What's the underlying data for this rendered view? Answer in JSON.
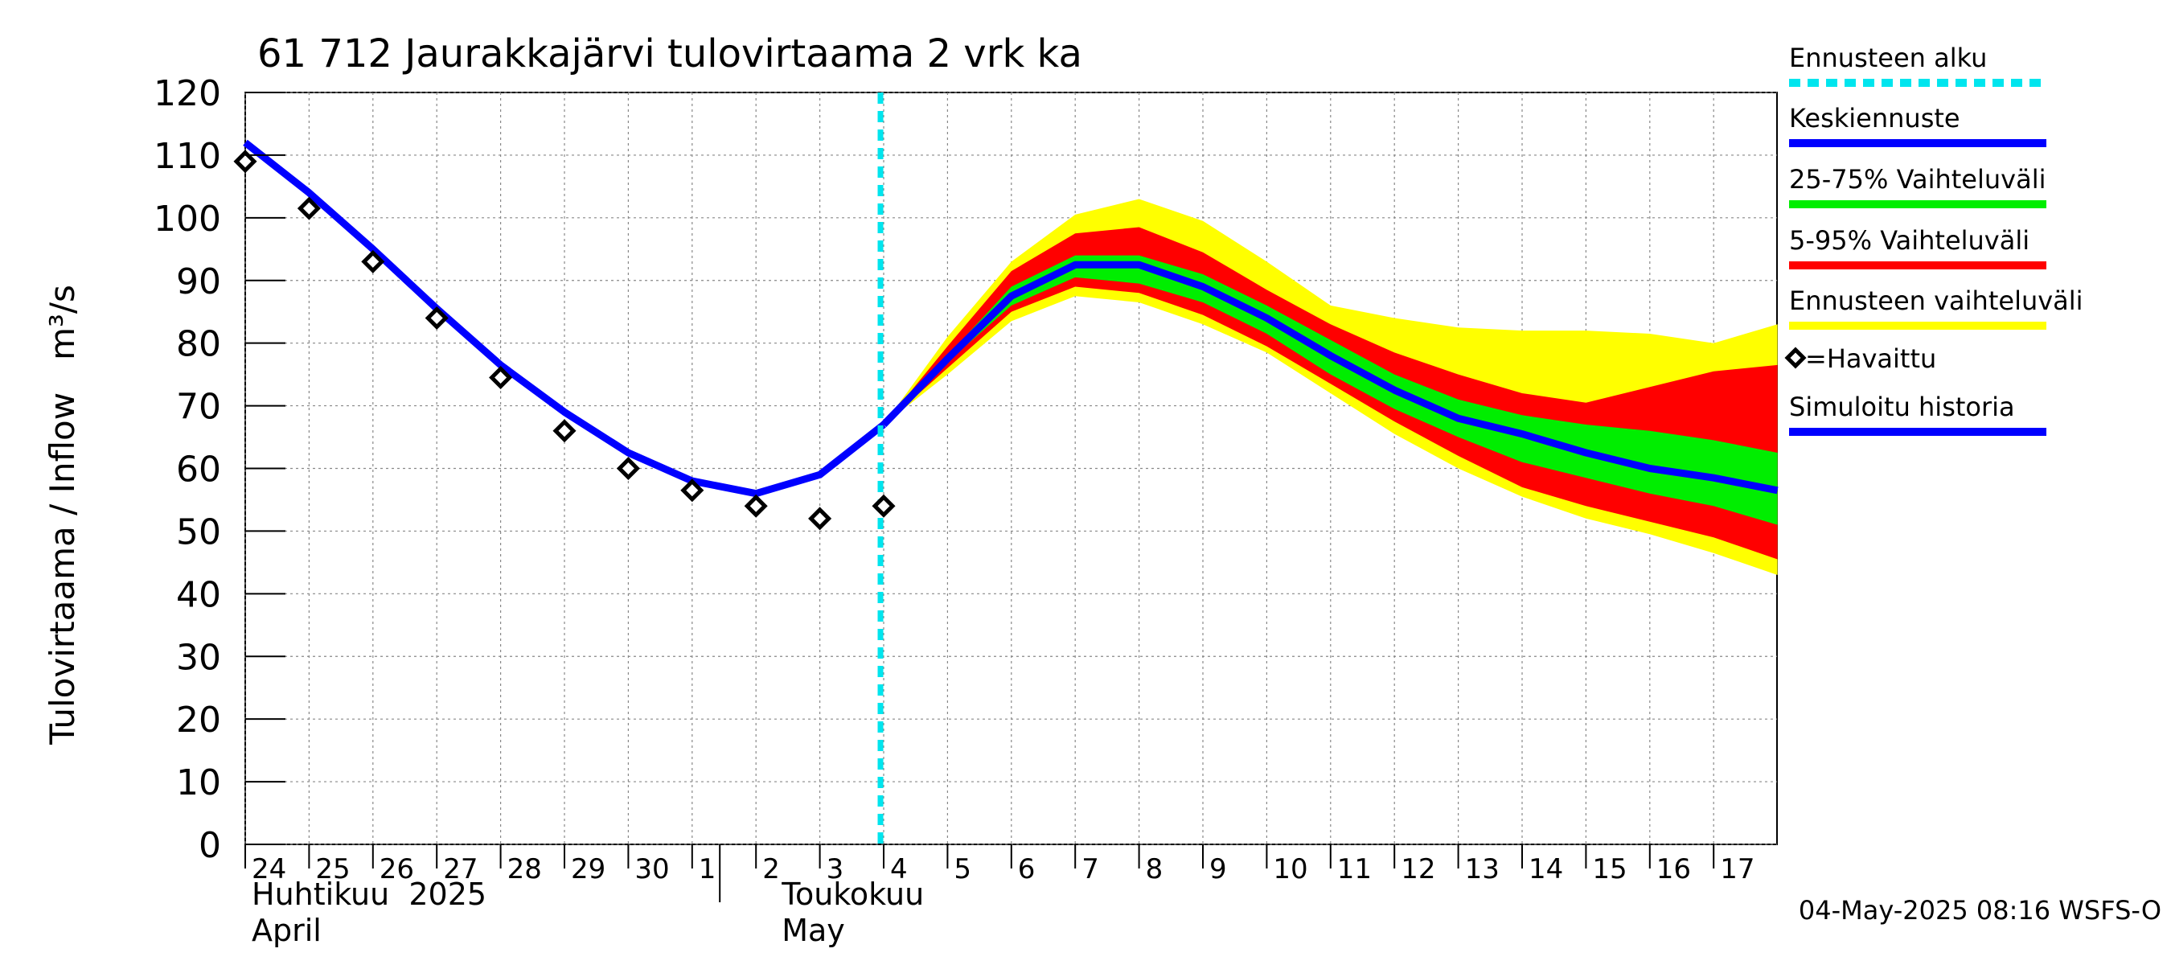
{
  "chart_data": {
    "type": "line",
    "title": "61 712 Jaurakkajärvi tulovirtaama 2 vrk ka",
    "ylabel": "Tulovirtaama / Inflow   m³/s",
    "ylim": [
      0,
      120
    ],
    "yticks": [
      0,
      10,
      20,
      30,
      40,
      50,
      60,
      70,
      80,
      90,
      100,
      110,
      120
    ],
    "x_start": "2025-04-24",
    "x_end": "2025-05-18",
    "day_ticks": [
      "24",
      "25",
      "26",
      "27",
      "28",
      "29",
      "30",
      "1",
      "2",
      "3",
      "4",
      "5",
      "6",
      "7",
      "8",
      "9",
      "10",
      "11",
      "12",
      "13",
      "14",
      "15",
      "16",
      "17"
    ],
    "month_labels": [
      {
        "line1": "Huhtikuu  2025",
        "line2": "April",
        "date": "2025-04-24"
      },
      {
        "line1": "Toukokuu",
        "line2": "May",
        "date": "2025-05-02"
      }
    ],
    "forecast_start": "2025-05-04",
    "footer": "04-May-2025 08:16 WSFS-O",
    "x": [
      "2025-04-24",
      "2025-04-25",
      "2025-04-26",
      "2025-04-27",
      "2025-04-28",
      "2025-04-29",
      "2025-04-30",
      "2025-05-01",
      "2025-05-02",
      "2025-05-03",
      "2025-05-04",
      "2025-05-05",
      "2025-05-06",
      "2025-05-07",
      "2025-05-08",
      "2025-05-09",
      "2025-05-10",
      "2025-05-11",
      "2025-05-12",
      "2025-05-13",
      "2025-05-14",
      "2025-05-15",
      "2025-05-16",
      "2025-05-17",
      "2025-05-18"
    ],
    "series": [
      {
        "name": "Simuloitu historia",
        "color": "#0000ff",
        "x": [
          "2025-04-24",
          "2025-04-25",
          "2025-04-26",
          "2025-04-27",
          "2025-04-28",
          "2025-04-29",
          "2025-04-30",
          "2025-05-01",
          "2025-05-02",
          "2025-05-03",
          "2025-05-04"
        ],
        "values": [
          112,
          104,
          95,
          85.5,
          76.5,
          69,
          62.5,
          58,
          56,
          59,
          67
        ]
      },
      {
        "name": "Keskiennuste",
        "color": "#0000ff",
        "x": [
          "2025-05-04",
          "2025-05-05",
          "2025-05-06",
          "2025-05-07",
          "2025-05-08",
          "2025-05-09",
          "2025-05-10",
          "2025-05-11",
          "2025-05-12",
          "2025-05-13",
          "2025-05-14",
          "2025-05-15",
          "2025-05-16",
          "2025-05-17",
          "2025-05-18"
        ],
        "values": [
          67,
          77.5,
          87.5,
          92.5,
          92.5,
          89,
          84,
          78,
          72.5,
          68,
          65.5,
          62.5,
          60,
          58.5,
          56.5
        ]
      },
      {
        "name": "=Havaittu",
        "color": "#000000",
        "kind": "observed",
        "x": [
          "2025-04-24",
          "2025-04-25",
          "2025-04-26",
          "2025-04-27",
          "2025-04-28",
          "2025-04-29",
          "2025-04-30",
          "2025-05-01",
          "2025-05-02",
          "2025-05-03",
          "2025-05-04"
        ],
        "values": [
          109,
          101.5,
          93,
          84,
          74.5,
          66,
          60,
          56.5,
          54,
          52,
          54
        ]
      }
    ],
    "bands": [
      {
        "name": "Ennusteen vaihteluväli",
        "color": "#ffff00",
        "upper": [
          67,
          81,
          93,
          100.5,
          103,
          99.5,
          93,
          86,
          84,
          82.5,
          82,
          82,
          81.5,
          80,
          83
        ],
        "lower": [
          67,
          75,
          83.5,
          87.5,
          86.5,
          83,
          78.5,
          72,
          65.5,
          60,
          55.5,
          52,
          49.5,
          46.5,
          43
        ]
      },
      {
        "name": "5-95% Vaihteluväli",
        "color": "#ff0000",
        "upper": [
          67,
          79.5,
          91.5,
          97.5,
          98.5,
          94.5,
          88.5,
          83,
          78.5,
          75,
          72,
          70.5,
          73,
          75.5,
          76.5
        ]
      },
      {
        "name": "25-75% Vaihteluväli",
        "color": "#00ee00",
        "upper": [
          67,
          78,
          89,
          94,
          94,
          91,
          86,
          80.5,
          75,
          71,
          68.5,
          67,
          66,
          64.5,
          62.5
        ],
        "lower": [
          67,
          77,
          86,
          90.5,
          89.5,
          86.5,
          81.5,
          75,
          69.5,
          65,
          61,
          58.5,
          56,
          54,
          51
        ]
      }
    ],
    "band_lower_5": [
      67,
      76,
      85,
      89,
      88,
      84.5,
      79.5,
      73.5,
      67.5,
      62,
      57,
      54,
      51.5,
      49,
      45.5
    ],
    "legend": [
      {
        "label": "Ennusteen alku",
        "color": "#00e5ee",
        "style": "dashed"
      },
      {
        "label": "Keskiennuste",
        "color": "#0000ff",
        "style": "line"
      },
      {
        "label": "25-75% Vaihteluväli",
        "color": "#00ee00",
        "style": "line"
      },
      {
        "label": "5-95% Vaihteluväli",
        "color": "#ff0000",
        "style": "line"
      },
      {
        "label": "Ennusteen vaihteluväli",
        "color": "#ffff00",
        "style": "line"
      },
      {
        "label": "=Havaittu",
        "color": "#000000",
        "style": "marker"
      },
      {
        "label": "Simuloitu historia",
        "color": "#0000ff",
        "style": "line"
      }
    ]
  }
}
